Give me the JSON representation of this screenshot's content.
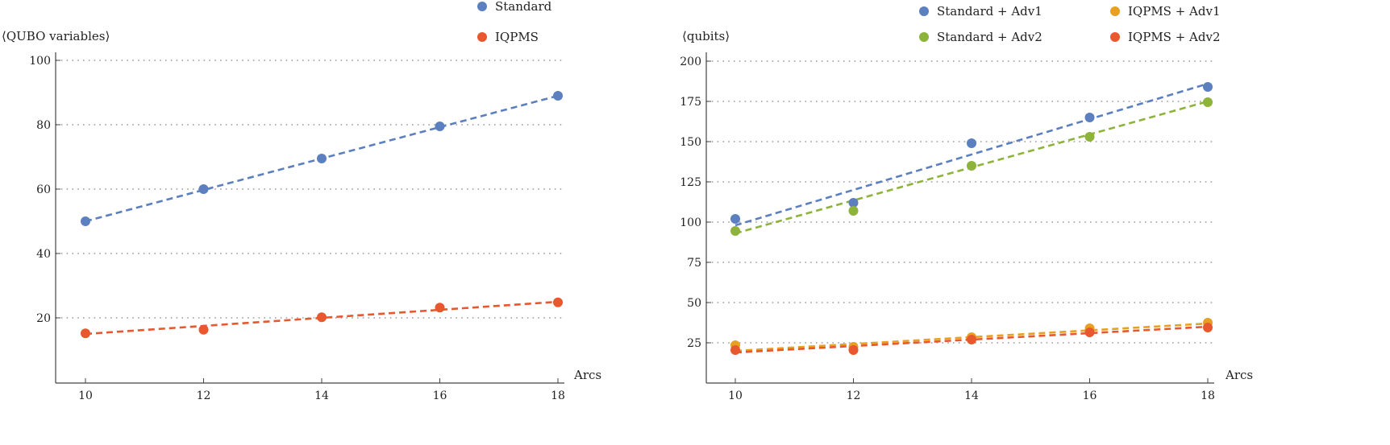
{
  "chart_data": [
    {
      "type": "scatter",
      "ylabel": "⟨QUBO variables⟩",
      "xlabel": "Arcs",
      "x": [
        10,
        12,
        14,
        16,
        18
      ],
      "xticks": [
        "10",
        "12",
        "14",
        "16",
        "18"
      ],
      "xlim": [
        9.3,
        18.4
      ],
      "ylim": [
        0,
        102
      ],
      "yticks": [
        "20",
        "40",
        "60",
        "80",
        "100"
      ],
      "grid": "horizontal dotted",
      "legend_position": "top-right",
      "series": [
        {
          "name": "Standard",
          "color": "#5b7fbf",
          "values": [
            50,
            60,
            69.5,
            79.5,
            89
          ],
          "fit": [
            50,
            89
          ]
        },
        {
          "name": "IQPMS",
          "color": "#e8572e",
          "values": [
            15.2,
            16.3,
            20.2,
            23.2,
            24.8
          ],
          "fit": [
            15,
            25
          ]
        }
      ]
    },
    {
      "type": "scatter",
      "ylabel": "⟨qubits⟩",
      "xlabel": "Arcs",
      "x": [
        10,
        12,
        14,
        16,
        18
      ],
      "xticks": [
        "10",
        "12",
        "14",
        "16",
        "18"
      ],
      "xlim": [
        9.3,
        18.4
      ],
      "ylim": [
        0,
        205
      ],
      "yticks": [
        "25",
        "50",
        "75",
        "100",
        "125",
        "150",
        "175",
        "200"
      ],
      "grid": "horizontal dotted",
      "legend_position": "top-right",
      "series": [
        {
          "name": "Standard + Adv1",
          "color": "#5b7fbf",
          "values": [
            102,
            112,
            149,
            165,
            184
          ],
          "fit": [
            98,
            186
          ]
        },
        {
          "name": "IQPMS + Adv1",
          "color": "#e8a023",
          "values": [
            23.5,
            22.5,
            28.5,
            34,
            37.5
          ],
          "fit": [
            20,
            37
          ]
        },
        {
          "name": "Standard + Adv2",
          "color": "#8db33a",
          "values": [
            94.5,
            107,
            135,
            153,
            174.5
          ],
          "fit": [
            93,
            175
          ]
        },
        {
          "name": "IQPMS + Adv2",
          "color": "#e8572e",
          "values": [
            20.5,
            20.5,
            27,
            31.5,
            34.5
          ],
          "fit": [
            19,
            35
          ]
        }
      ]
    }
  ]
}
